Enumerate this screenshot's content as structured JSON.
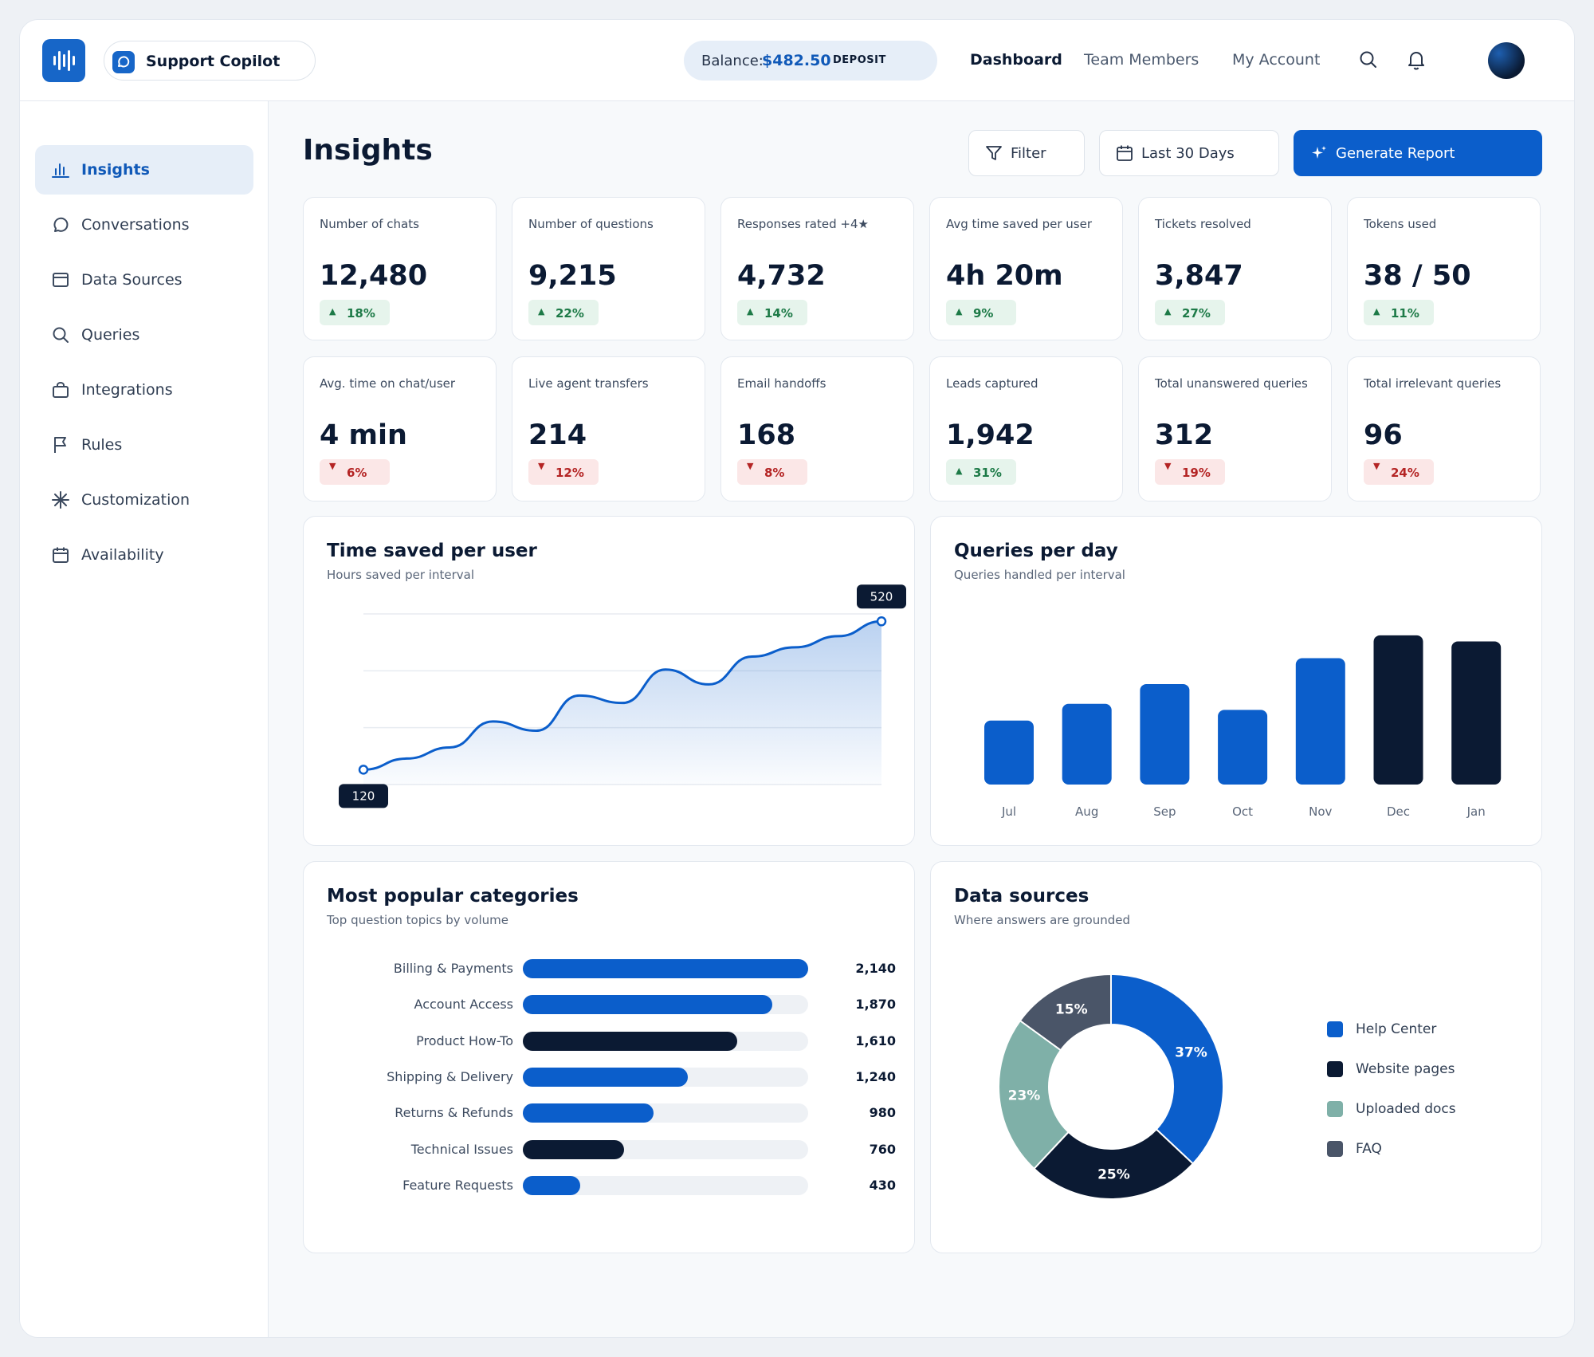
{
  "header": {
    "app_name": "Support Copilot",
    "balance_label": "Balance:",
    "balance_amount": "$482.50",
    "deposit_label": "DEPOSIT",
    "nav": [
      "Dashboard",
      "Team Members",
      "My Account"
    ],
    "active_nav": "Dashboard"
  },
  "sidebar": {
    "items": [
      {
        "label": "Insights",
        "icon": "bar-chart-icon",
        "active": true
      },
      {
        "label": "Conversations",
        "icon": "chat-bubble-icon",
        "active": false
      },
      {
        "label": "Data Sources",
        "icon": "database-icon",
        "active": false
      },
      {
        "label": "Queries",
        "icon": "search-icon",
        "active": false
      },
      {
        "label": "Integrations",
        "icon": "bag-icon",
        "active": false
      },
      {
        "label": "Rules",
        "icon": "flag-icon",
        "active": false
      },
      {
        "label": "Customization",
        "icon": "sparkle-icon",
        "active": false
      },
      {
        "label": "Availability",
        "icon": "calendar-icon",
        "active": false
      }
    ]
  },
  "page": {
    "title": "Insights",
    "filter_label": "Filter",
    "range_label": "Last 30 Days",
    "report_label": "Generate Report"
  },
  "kpis": [
    {
      "label": "Number of chats",
      "value": "12,480",
      "change": "18%",
      "direction": "up"
    },
    {
      "label": "Number of questions",
      "value": "9,215",
      "change": "22%",
      "direction": "up"
    },
    {
      "label": "Responses rated +4★",
      "value": "4,732",
      "change": "14%",
      "direction": "up"
    },
    {
      "label": "Avg time saved per user",
      "value": "4h 20m",
      "change": "9%",
      "direction": "up"
    },
    {
      "label": "Tickets resolved",
      "value": "3,847",
      "change": "27%",
      "direction": "up"
    },
    {
      "label": "Tokens used",
      "value": "38 / 50",
      "change": "11%",
      "direction": "up"
    },
    {
      "label": "Avg. time on chat/user",
      "value": "4 min",
      "change": "6%",
      "direction": "down"
    },
    {
      "label": "Live agent transfers",
      "value": "214",
      "change": "12%",
      "direction": "down"
    },
    {
      "label": "Email handoffs",
      "value": "168",
      "change": "8%",
      "direction": "down"
    },
    {
      "label": "Leads captured",
      "value": "1,942",
      "change": "31%",
      "direction": "up"
    },
    {
      "label": "Total unanswered queries",
      "value": "312",
      "change": "19%",
      "direction": "down"
    },
    {
      "label": "Total irrelevant queries",
      "value": "96",
      "change": "24%",
      "direction": "down"
    }
  ],
  "colors": {
    "primary": "#0b5ecb",
    "navy": "#0b1a33",
    "teal": "#7fb0a8",
    "slate": "#4a5568",
    "up": "#1d7a47",
    "down": "#b42424"
  },
  "chart_data": [
    {
      "type": "area",
      "title": "Time saved per user",
      "subtitle": "Hours saved per interval",
      "x": [
        0,
        1,
        2,
        3,
        4,
        5,
        6,
        7,
        8,
        9,
        10,
        11,
        12
      ],
      "values": [
        120,
        150,
        180,
        250,
        225,
        320,
        300,
        390,
        350,
        425,
        450,
        480,
        520
      ],
      "start_label": "120",
      "end_label": "520",
      "ylim": [
        80,
        540
      ]
    },
    {
      "type": "bar",
      "title": "Queries per day",
      "subtitle": "Queries handled per interval",
      "categories": [
        "Jul",
        "Aug",
        "Sep",
        "Oct",
        "Nov",
        "Dec",
        "Jan"
      ],
      "values": [
        42,
        53,
        66,
        49,
        83,
        98,
        94
      ],
      "highlight": [
        false,
        false,
        false,
        false,
        false,
        true,
        true
      ],
      "ylim": [
        0,
        100
      ]
    },
    {
      "type": "bar",
      "title": "Most popular categories",
      "subtitle": "Top question topics by volume",
      "categories": [
        "Billing & Payments",
        "Account Access",
        "Product How-To",
        "Shipping & Delivery",
        "Returns & Refunds",
        "Technical Issues",
        "Feature Requests"
      ],
      "values": [
        2140,
        1870,
        1610,
        1240,
        980,
        760,
        430
      ],
      "value_labels": [
        "2,140",
        "1,870",
        "1,610",
        "1,240",
        "980",
        "760",
        "430"
      ],
      "highlight": [
        false,
        false,
        true,
        false,
        false,
        true,
        false
      ],
      "xlim": [
        0,
        2140
      ]
    },
    {
      "type": "pie",
      "title": "Data sources",
      "subtitle": "Where answers are grounded",
      "labels": [
        "Help Center",
        "Website pages",
        "Uploaded docs",
        "FAQ"
      ],
      "values": [
        37,
        25,
        23,
        15
      ],
      "value_labels": [
        "37%",
        "25%",
        "23%",
        "15%"
      ],
      "colors": [
        "#0b5ecb",
        "#0b1a33",
        "#7fb0a8",
        "#4a5568"
      ]
    }
  ]
}
